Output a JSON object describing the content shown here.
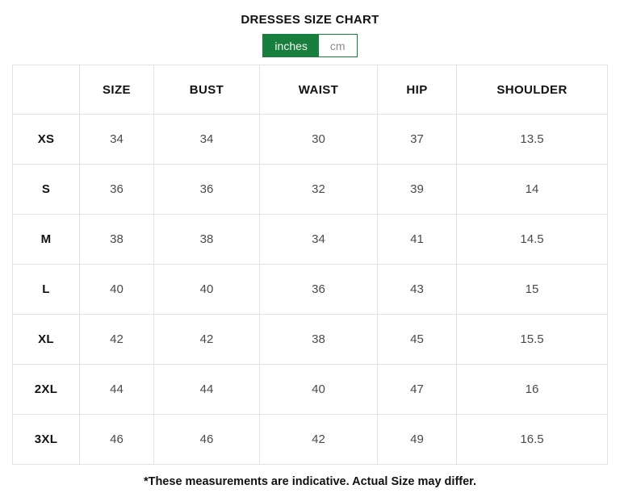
{
  "title": "DRESSES SIZE CHART",
  "unit_toggle": {
    "selected_unit": "inches",
    "inches_label": "inches",
    "cm_label": "cm",
    "accent_color": "#177e3d",
    "unselected_text_color": "#8a8a8a"
  },
  "table": {
    "headers": [
      "",
      "SIZE",
      "BUST",
      "WAIST",
      "HIP",
      "SHOULDER"
    ],
    "rows": [
      {
        "size": "XS",
        "values": [
          "34",
          "34",
          "30",
          "37",
          "13.5"
        ]
      },
      {
        "size": "S",
        "values": [
          "36",
          "36",
          "32",
          "39",
          "14"
        ]
      },
      {
        "size": "M",
        "values": [
          "38",
          "38",
          "34",
          "41",
          "14.5"
        ]
      },
      {
        "size": "L",
        "values": [
          "40",
          "40",
          "36",
          "43",
          "15"
        ]
      },
      {
        "size": "XL",
        "values": [
          "42",
          "42",
          "38",
          "45",
          "15.5"
        ]
      },
      {
        "size": "2XL",
        "values": [
          "44",
          "44",
          "40",
          "47",
          "16"
        ]
      },
      {
        "size": "3XL",
        "values": [
          "46",
          "46",
          "42",
          "49",
          "16.5"
        ]
      }
    ],
    "border_color": "#e2e2e2",
    "value_text_color": "#4a4a4a"
  },
  "footnote": "*These measurements are indicative. Actual Size may differ."
}
